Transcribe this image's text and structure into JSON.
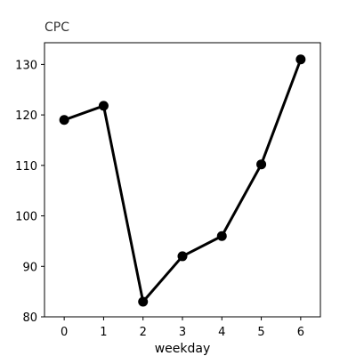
{
  "chart_data": {
    "type": "line",
    "title": "CPC",
    "xlabel": "weekday",
    "ylabel": "",
    "x": [
      0,
      1,
      2,
      3,
      4,
      5,
      6
    ],
    "series": [
      {
        "values": [
          119,
          121.8,
          83,
          92,
          96,
          110.2,
          131
        ]
      }
    ],
    "xlim": [
      -0.5,
      6.5
    ],
    "ylim": [
      80,
      134.3
    ],
    "xticks": [
      0,
      1,
      2,
      3,
      4,
      5,
      6
    ],
    "yticks": [
      80,
      90,
      100,
      110,
      120,
      130
    ],
    "grid": false,
    "line_color": "#000000",
    "marker": "circle"
  }
}
